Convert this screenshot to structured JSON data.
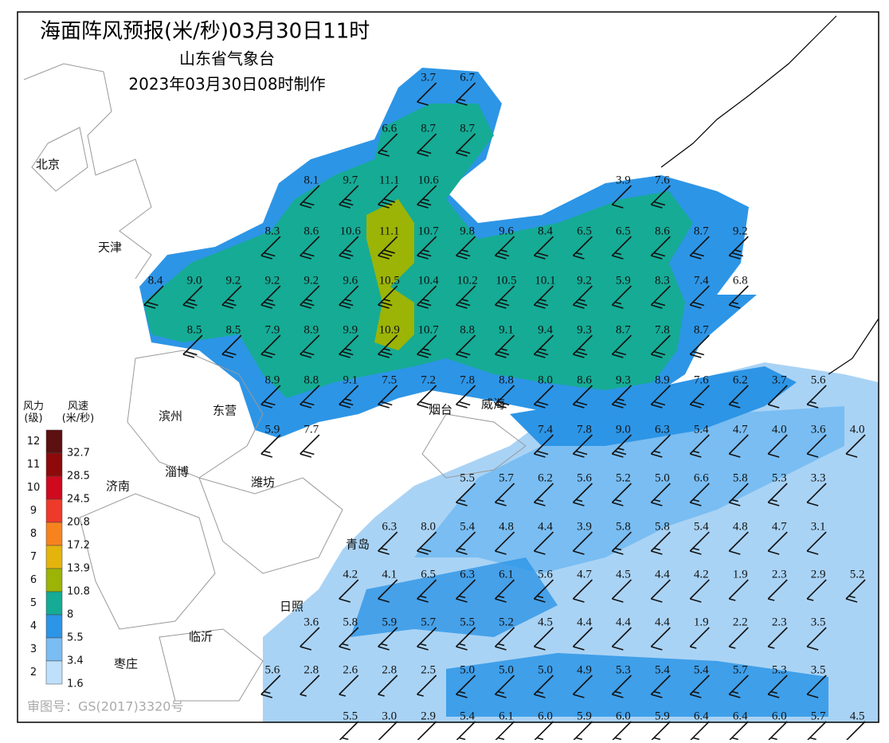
{
  "header": {
    "title": "海面阵风预报(米/秒)03月30日11时",
    "issuer": "山东省气象台",
    "issued": "2023年03月30日08时制作"
  },
  "places": [
    "北京",
    "天津",
    "滨州",
    "东营",
    "淄博",
    "潍坊",
    "济南",
    "烟台",
    "威海",
    "青岛",
    "日照",
    "临沂",
    "枣庄"
  ],
  "legend": {
    "level_header": "风力\n(级)",
    "speed_header": "风速\n(米/秒)",
    "levels": [
      "12",
      "11",
      "10",
      "9",
      "8",
      "7",
      "6",
      "5",
      "4",
      "3",
      "2"
    ],
    "speeds": [
      "32.7",
      "28.5",
      "24.5",
      "20.8",
      "17.2",
      "13.9",
      "10.8",
      "8",
      "5.5",
      "3.4",
      "1.6"
    ],
    "colors": [
      "#5c1010",
      "#8e0a0a",
      "#cf0a1e",
      "#ee3a2a",
      "#f7831f",
      "#e3b50c",
      "#9bb406",
      "#16ab95",
      "#2d95e6",
      "#79bdf2",
      "#bfe0fa"
    ]
  },
  "stations": [
    [
      "3.7",
      "6.7"
    ],
    [
      "6.6",
      "8.7",
      "8.7"
    ],
    [
      "8.1",
      "9.7",
      "11.1",
      "10.6",
      "3.9",
      "7.6"
    ],
    [
      "8.3",
      "8.6",
      "10.6",
      "11.1",
      "10.7",
      "9.8",
      "9.6",
      "8.4",
      "6.5",
      "6.5",
      "8.6",
      "8.7",
      "9.2"
    ],
    [
      "8.4",
      "9.0",
      "9.2",
      "9.2",
      "9.2",
      "9.6",
      "10.5",
      "10.4",
      "10.2",
      "10.5",
      "10.1",
      "9.2",
      "5.9",
      "8.3",
      "7.4",
      "6.8"
    ],
    [
      "8.5",
      "8.5",
      "7.9",
      "8.9",
      "9.9",
      "10.9",
      "10.7",
      "8.8",
      "9.1",
      "9.4",
      "9.3",
      "8.7",
      "7.8",
      "8.7"
    ],
    [
      "8.9",
      "8.8",
      "9.1",
      "7.5",
      "7.2",
      "7.8",
      "8.8",
      "8.0",
      "8.6",
      "9.3",
      "8.9",
      "7.6",
      "6.2",
      "3.7",
      "5.6"
    ],
    [
      "5.9",
      "7.7",
      "7.4",
      "7.8",
      "9.0",
      "6.3",
      "5.4",
      "4.7",
      "4.0",
      "3.6",
      "4.0"
    ],
    [
      "5.5",
      "5.7",
      "6.2",
      "5.6",
      "5.2",
      "5.0",
      "6.6",
      "5.8",
      "5.3",
      "3.3"
    ],
    [
      "6.3",
      "8.0",
      "5.4",
      "4.8",
      "4.4",
      "3.9",
      "5.8",
      "5.8",
      "5.4",
      "4.8",
      "4.7",
      "3.1"
    ],
    [
      "4.2",
      "4.1",
      "6.5",
      "6.3",
      "6.1",
      "5.6",
      "4.7",
      "4.5",
      "4.4",
      "4.2",
      "1.9",
      "2.3",
      "2.9",
      "5.2"
    ],
    [
      "3.6",
      "5.8",
      "5.9",
      "5.7",
      "5.5",
      "5.2",
      "4.5",
      "4.4",
      "4.4",
      "4.4",
      "1.9",
      "2.2",
      "2.3",
      "3.5"
    ],
    [
      "5.6",
      "2.8",
      "2.6",
      "2.8",
      "2.5",
      "5.0",
      "5.0",
      "5.0",
      "4.9",
      "5.3",
      "5.4",
      "5.4",
      "5.7",
      "5.3",
      "3.5"
    ],
    [
      "5.5",
      "3.0",
      "2.9",
      "5.4",
      "6.1",
      "6.0",
      "5.9",
      "6.0",
      "5.9",
      "6.4",
      "6.4",
      "6.0",
      "5.7",
      "4.5"
    ]
  ],
  "footer": "审图号：GS(2017)3320号"
}
